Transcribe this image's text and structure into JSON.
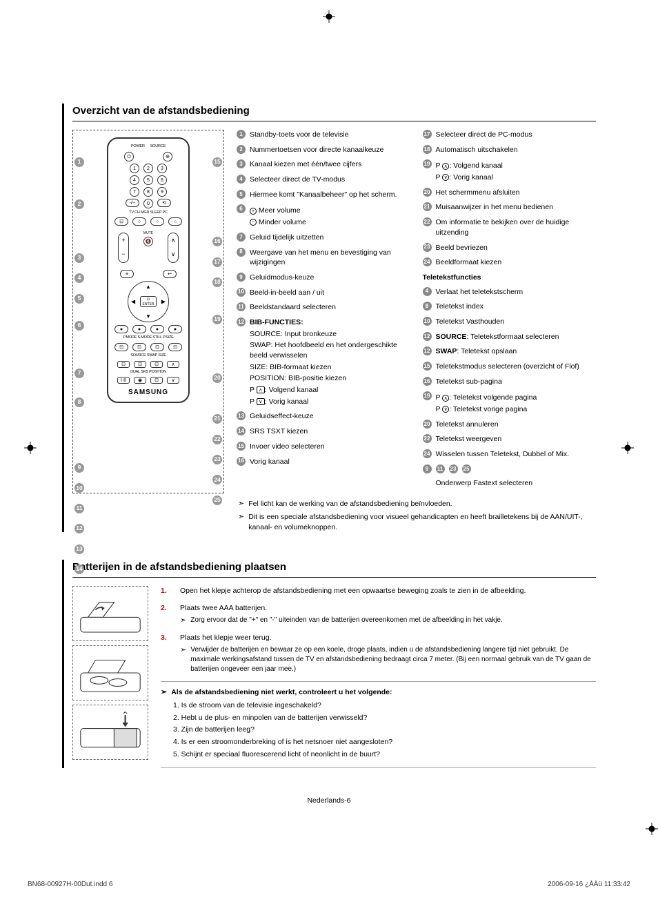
{
  "colors": {
    "border_left": "#000000",
    "bubble_bg": "#888888",
    "bubble_fg": "#ffffff",
    "step_num": "#cc0000",
    "dash": "#666666"
  },
  "section1": {
    "title": "Overzicht van de afstandsbediening",
    "remote": {
      "brand": "SAMSUNG",
      "labels_top": [
        "POWER",
        "SOURCE"
      ],
      "label_row_tv": "TV    CH MGR  SLEEP    PC",
      "label_row_pmode": "P.MODE  S.MODE  STILL  P.SIZE",
      "label_row_bottom": "SOURCE  SWAP   SIZE",
      "label_row_bottom2": "DUAL   SRS   POSITION",
      "enter": "ENTER",
      "mute": "MUTE"
    },
    "left_callouts": [
      1,
      2,
      3,
      4,
      5,
      6,
      7,
      8,
      9,
      10,
      11,
      12,
      13,
      14
    ],
    "right_callouts": [
      15,
      16,
      17,
      18,
      19,
      20,
      21,
      22,
      23,
      24,
      25
    ],
    "col1": [
      {
        "n": 1,
        "t": "Standby-toets voor de televisie"
      },
      {
        "n": 2,
        "t": "Nummertoetsen voor directe kanaalkeuze"
      },
      {
        "n": 3,
        "t": "Kanaal kiezen met één/twee cijfers"
      },
      {
        "n": 4,
        "t": "Selecteer direct de TV-modus"
      },
      {
        "n": 5,
        "t": "Hiermee komt \"Kanaalbeheer\" op het scherm."
      },
      {
        "n": 6,
        "t": "",
        "sub": [
          {
            "icon": "plus",
            "t": "Meer volume"
          },
          {
            "icon": "minus",
            "t": "Minder volume"
          }
        ]
      },
      {
        "n": 7,
        "t": "Geluid tijdelijk uitzetten"
      },
      {
        "n": 8,
        "t": "Weergave van het menu en bevestiging van wijzigingen"
      },
      {
        "n": 9,
        "t": "Geluidmodus-keuze"
      },
      {
        "n": 10,
        "t": "Beeld-in-beeld aan / uit"
      },
      {
        "n": 11,
        "t": "Beeldstandaard selecteren"
      },
      {
        "n": 12,
        "t": "",
        "bold": "BIB-FUNCTIES:",
        "sub": [
          {
            "t": "SOURCE: Input bronkeuze"
          },
          {
            "t": "SWAP:   Het hoofdbeeld en het ondergeschikte beeld verwisselen"
          },
          {
            "t": "SIZE: BIB-formaat kiezen"
          },
          {
            "t": "POSITION: BIB-positie kiezen"
          },
          {
            "t": "P",
            "boxup": true,
            "tail": ": Volgend kanaal"
          },
          {
            "t": "P",
            "boxdown": true,
            "tail": ": Vorig kanaal"
          }
        ]
      },
      {
        "n": 13,
        "t": "Geluidseffect-keuze"
      },
      {
        "n": 14,
        "t": "SRS TSXT kiezen"
      },
      {
        "n": 15,
        "t": "Invoer video selecteren"
      },
      {
        "n": 16,
        "t": "Vorig kanaal"
      }
    ],
    "col2": [
      {
        "n": 17,
        "t": "Selecteer direct de PC-modus"
      },
      {
        "n": 18,
        "t": "Automatisch uitschakelen"
      },
      {
        "n": 19,
        "t": "",
        "sub": [
          {
            "t": "P",
            "circup": true,
            "tail": ": Volgend kanaal"
          },
          {
            "t": "P",
            "circdown": true,
            "tail": ": Vorig kanaal"
          }
        ]
      },
      {
        "n": 20,
        "t": "Het schermmenu afsluiten"
      },
      {
        "n": 21,
        "t": "Muisaanwijzer in het menu bedienen"
      },
      {
        "n": 22,
        "t": "Om informatie te bekijken over de huidige uitzending"
      },
      {
        "n": 23,
        "t": "Beeld bevriezen"
      },
      {
        "n": 24,
        "t": "Beeldformaat kiezen"
      }
    ],
    "teletext_head": "Teletekstfuncties",
    "col2b": [
      {
        "n": 4,
        "t": "Verlaat het teletekstscherm"
      },
      {
        "n": 8,
        "t": "Teletekst index"
      },
      {
        "n": 10,
        "t": "Teletekst Vasthouden"
      },
      {
        "n": 12,
        "t": "",
        "boldword": "SOURCE",
        "tail": ": Teletekstformaat selecteren"
      },
      {
        "n": 12,
        "t": "",
        "boldword": "SWAP",
        "tail": ": Teletekst opslaan"
      },
      {
        "n": 15,
        "t": "Teletekstmodus selecteren (overzicht of Flof)"
      },
      {
        "n": 16,
        "t": "Teletekst sub-pagina"
      },
      {
        "n": 19,
        "t": "",
        "sub": [
          {
            "t": "P",
            "circup": true,
            "tail": ": Teletekst volgende pagina"
          },
          {
            "t": "P",
            "circdown": true,
            "tail": ": Teletekst vorige pagina"
          }
        ]
      },
      {
        "n": 20,
        "t": "Teletekst annuleren"
      },
      {
        "n": 22,
        "t": "Teletekst weergeven"
      },
      {
        "n": 24,
        "t": "Wisselen tussen Teletekst, Dubbel of Mix."
      }
    ],
    "fastext_nums": [
      9,
      11,
      23,
      25
    ],
    "fastext_label": "Onderwerp Fastext selecteren",
    "notes": [
      "Fel licht kan de werking van de afstandsbediening beïnvloeden.",
      "Dit is een speciale afstandsbediening voor visueel gehandicapten en heeft brailletekens bij de AAN/UIT-, kanaal- en volumeknoppen."
    ]
  },
  "section2": {
    "title": "Batterijen in de afstandsbediening plaatsen",
    "steps": [
      {
        "n": "1.",
        "t": "Open het klepje achterop de afstandsbediening met een opwaartse beweging zoals te zien in de afbeelding."
      },
      {
        "n": "2.",
        "t": "Plaats twee AAA batterijen.",
        "sub": "Zorg ervoor dat de \"+\" en \"-\" uiteinden van de batterijen overeenkomen met de afbeelding in het vakje."
      },
      {
        "n": "3.",
        "t": "Plaats het klepje weer terug.",
        "sub": "Verwijder de batterijen en bewaar ze op een koele, droge plaats, indien u de afstandsbediening langere tijd niet gebruikt. De maximale werkingsafstand tussen de TV en afstandsbediening bedraagt circa 7 meter. (Bij een normaal gebruik van de TV gaan de batterijen ongeveer een jaar mee.)"
      }
    ],
    "check_head": "Als de afstandsbediening niet werkt, controleert u het volgende:",
    "checks": [
      "1. Is de stroom van de televisie ingeschakeld?",
      "2. Hebt u de plus- en minpolen van de batterijen verwisseld?",
      "3. Zijn de batterijen leeg?",
      "4. Is er een stroomonderbreking of is het netsnoer niet aangesloten?",
      "5. Schijnt er speciaal fluorescerend licht of neonlicht in de buurt?"
    ]
  },
  "page_num": "Nederlands-6",
  "footer": {
    "left": "BN68-00927H-00Dut.indd   6",
    "right": "2006-09-16   ¿ÀÀü 11:33:42"
  }
}
